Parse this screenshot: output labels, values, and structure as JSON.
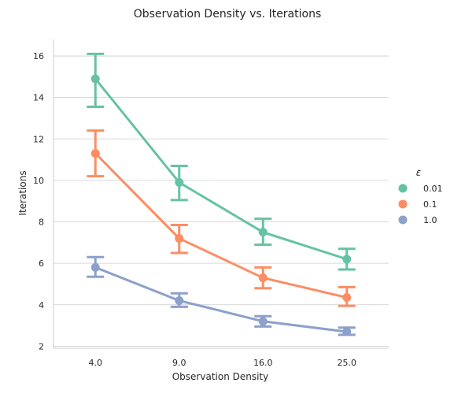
{
  "chart_data": {
    "type": "line",
    "title": "Observation Density vs. Iterations",
    "xlabel": "Observation Density",
    "ylabel": "Iterations",
    "categories": [
      "4.0",
      "9.0",
      "16.0",
      "25.0"
    ],
    "ylim": [
      1.9,
      16.8
    ],
    "yticks": [
      2,
      4,
      6,
      8,
      10,
      12,
      14,
      16
    ],
    "grid": "horizontal",
    "legend_title": "ε",
    "legend_position": "right",
    "series": [
      {
        "name": "0.01",
        "color": "#66c2a5",
        "values": [
          14.9,
          9.9,
          7.5,
          6.2
        ],
        "err_low": [
          13.55,
          9.05,
          6.9,
          5.7
        ],
        "err_high": [
          16.1,
          10.7,
          8.15,
          6.7
        ]
      },
      {
        "name": "0.1",
        "color": "#fc8d62",
        "values": [
          11.3,
          7.2,
          5.3,
          4.35
        ],
        "err_low": [
          10.2,
          6.5,
          4.8,
          3.95
        ],
        "err_high": [
          12.4,
          7.85,
          5.8,
          4.85
        ]
      },
      {
        "name": "1.0",
        "color": "#8da0cb",
        "values": [
          5.8,
          4.2,
          3.2,
          2.7
        ],
        "err_low": [
          5.35,
          3.9,
          2.95,
          2.55
        ],
        "err_high": [
          6.3,
          4.55,
          3.45,
          2.9
        ]
      }
    ]
  }
}
